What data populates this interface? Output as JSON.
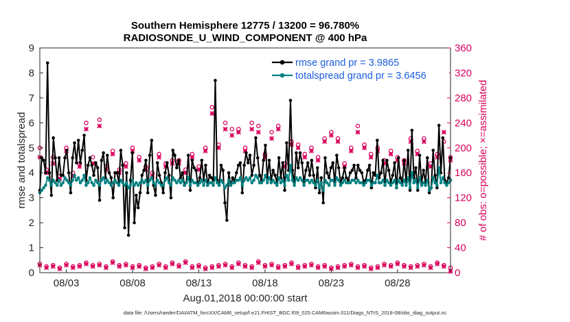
{
  "chart_data": {
    "type": "line",
    "title_line1": "Southern Hemisphere 12775 / 13200 = 96.780%",
    "title_line2": "RADIOSONDE_U_WIND_COMPONENT @ 400 hPa",
    "xlabel": "Aug.01,2018 00:00:00 start",
    "ylabel_left": "rmse and totalspread",
    "ylabel_right": "# of obs: o=possible; ×=assimilated",
    "footer": "data file: /Users/raeder/DAI/ATM_forcXX/CAM6_setup/f.e21.FHIST_BGC.f09_025.CAM6assim.011/Diags_NTrS_2018-08/obs_diag_output.nc",
    "x_range_days": [
      0.5,
      31.5
    ],
    "x_ticks": [
      {
        "day": 2.5,
        "label": "08/03"
      },
      {
        "day": 7.5,
        "label": "08/08"
      },
      {
        "day": 12.5,
        "label": "08/13"
      },
      {
        "day": 17.5,
        "label": "08/18"
      },
      {
        "day": 22.5,
        "label": "08/23"
      },
      {
        "day": 27.5,
        "label": "08/28"
      }
    ],
    "ylim_left": [
      0,
      9
    ],
    "yticks_left": [
      "0",
      "1",
      "2",
      "3",
      "4",
      "5",
      "6",
      "7",
      "8",
      "9"
    ],
    "ylim_right": [
      0,
      360
    ],
    "yticks_right": [
      "0",
      "40",
      "80",
      "120",
      "160",
      "200",
      "240",
      "280",
      "320",
      "360"
    ],
    "colors": {
      "rmse": "#000000",
      "spread": "#008080",
      "obs": "#d9005b",
      "legend_text": "#1a5ddc",
      "axis": "#262626"
    },
    "series": [
      {
        "name": "rmse grand pr = 3.9865",
        "values": [
          3.3,
          4.6,
          4.5,
          4.0,
          8.4,
          4.0,
          3.1,
          5.4,
          4.6,
          3.7,
          4.6,
          3.9,
          3.9,
          4.6,
          4.9,
          4.0,
          3.2,
          4.6,
          5.2,
          4.4,
          5.3,
          4.4,
          4.9,
          5.5,
          3.7,
          4.3,
          4.6,
          4.3,
          3.9,
          4.4,
          4.2,
          2.9,
          4.5,
          4.8,
          3.8,
          4.7,
          4.0,
          3.8,
          3.0,
          4.0,
          4.0,
          3.6,
          4.9,
          4.3,
          1.8,
          4.0,
          1.5,
          3.7,
          4.8,
          2.0,
          3.1,
          2.6,
          3.2,
          3.9,
          4.1,
          4.5,
          3.2,
          4.7,
          5.3,
          3.5,
          3.1,
          4.4,
          3.9,
          3.6,
          3.2,
          4.0,
          4.4,
          3.9,
          3.0,
          4.9,
          4.7,
          4.2,
          4.5,
          3.8,
          4.0,
          3.5,
          3.6,
          4.7,
          3.3,
          4.5,
          4.2,
          4.1,
          3.5,
          3.8,
          4.5,
          3.7,
          4.3,
          3.5,
          3.9,
          3.8,
          3.7,
          7.7,
          3.7,
          3.5,
          4.3,
          4.1,
          2.8,
          2.1,
          4.0,
          3.5,
          3.8,
          3.7,
          4.0,
          4.3,
          4.4,
          3.2,
          4.3,
          4.8,
          4.4,
          4.7,
          3.9,
          4.3,
          5.4,
          4.6,
          3.9,
          3.7,
          4.5,
          5.1,
          3.8,
          4.5,
          3.7,
          4.1,
          3.9,
          3.6,
          4.6,
          3.8,
          4.4,
          3.3,
          5.2,
          4.1,
          6.9,
          4.1,
          3.6,
          4.8,
          4.2,
          4.8,
          4.4,
          3.6,
          4.1,
          4.4,
          3.9,
          4.5,
          3.9,
          3.4,
          4.2,
          3.2,
          3.8,
          2.8,
          4.6,
          4.0,
          3.8,
          4.2,
          4.4,
          3.6,
          4.7,
          4.2,
          3.6,
          3.8,
          4.2,
          3.8,
          3.7,
          4.0,
          4.1,
          4.3,
          3.8,
          4.3,
          4.1,
          4.0,
          3.6,
          3.7,
          4.1,
          4.3,
          3.4,
          4.0,
          3.9,
          5.3,
          3.8,
          4.0,
          4.5,
          3.5,
          4.5,
          4.1,
          3.6,
          3.9,
          4.4,
          3.4,
          4.6,
          3.8,
          3.6,
          4.5,
          3.6,
          4.9,
          3.3,
          5.7,
          3.8,
          4.2,
          3.3,
          4.7,
          3.6,
          4.1,
          3.6,
          4.6,
          3.2,
          3.4,
          4.9,
          3.9,
          3.4,
          5.9,
          4.0,
          5.4,
          3.7,
          3.6,
          3.8,
          4.6
        ]
      },
      {
        "name": "totalspread grand pr = 3.6456",
        "values": [
          3.2,
          3.3,
          3.4,
          3.5,
          3.8,
          3.7,
          3.5,
          3.7,
          3.6,
          3.5,
          3.7,
          3.5,
          3.6,
          3.8,
          3.7,
          3.6,
          3.5,
          3.7,
          3.9,
          3.7,
          3.8,
          3.6,
          3.7,
          3.9,
          3.5,
          3.6,
          3.8,
          3.6,
          3.5,
          3.7,
          3.6,
          3.5,
          3.7,
          3.8,
          3.6,
          3.7,
          3.6,
          3.5,
          3.6,
          3.7,
          3.6,
          3.5,
          3.7,
          3.6,
          3.5,
          3.6,
          3.4,
          3.5,
          3.7,
          3.5,
          3.6,
          3.5,
          3.6,
          3.7,
          3.6,
          3.7,
          3.5,
          3.7,
          3.8,
          3.6,
          3.5,
          3.7,
          3.6,
          3.5,
          3.5,
          3.7,
          3.8,
          3.6,
          3.5,
          3.8,
          3.7,
          3.6,
          3.7,
          3.6,
          3.7,
          3.5,
          3.6,
          3.8,
          3.5,
          3.7,
          3.6,
          3.6,
          3.5,
          3.6,
          3.7,
          3.5,
          3.7,
          3.5,
          3.6,
          3.6,
          3.5,
          3.8,
          3.6,
          3.5,
          3.7,
          3.6,
          3.4,
          3.5,
          3.7,
          3.5,
          3.6,
          3.6,
          3.7,
          3.7,
          3.8,
          3.5,
          3.7,
          3.8,
          3.7,
          3.8,
          3.6,
          3.7,
          3.9,
          3.8,
          3.6,
          3.6,
          3.7,
          3.9,
          3.6,
          3.8,
          3.6,
          3.7,
          3.6,
          3.5,
          3.8,
          3.6,
          3.7,
          3.5,
          3.9,
          3.7,
          4.3,
          3.7,
          3.5,
          3.8,
          3.7,
          3.8,
          3.7,
          3.5,
          3.7,
          3.7,
          3.6,
          3.7,
          3.6,
          3.5,
          3.7,
          3.4,
          3.6,
          3.3,
          3.7,
          3.6,
          3.5,
          3.7,
          3.7,
          3.5,
          3.8,
          3.7,
          3.5,
          3.6,
          3.7,
          3.6,
          3.6,
          3.6,
          3.7,
          3.7,
          3.6,
          3.7,
          3.6,
          3.6,
          3.5,
          3.6,
          3.7,
          3.7,
          3.5,
          3.6,
          3.6,
          3.9,
          3.6,
          3.6,
          3.7,
          3.5,
          3.7,
          3.6,
          3.5,
          3.6,
          3.7,
          3.4,
          3.7,
          3.6,
          3.5,
          3.7,
          3.5,
          3.8,
          3.4,
          4.0,
          3.6,
          3.7,
          3.4,
          3.8,
          3.5,
          3.6,
          3.5,
          3.7,
          3.3,
          3.4,
          3.8,
          3.6,
          3.5,
          4.2,
          3.6,
          3.8,
          3.6,
          3.5,
          3.6,
          3.7
        ]
      }
    ],
    "obs_possible_days": [
      0.5,
      1.0,
      1.5,
      2.0,
      2.5,
      3.0,
      3.5,
      4.0,
      4.5,
      5.0,
      5.5,
      6.0,
      6.5,
      7.0,
      7.5,
      8.0,
      8.5,
      9.0,
      9.5,
      10.0,
      10.5,
      11.0,
      11.5,
      12.0,
      12.5,
      13.0,
      13.5,
      14.0,
      14.5,
      15.0,
      15.5,
      16.0,
      16.5,
      17.0,
      17.5,
      18.0,
      18.5,
      19.0,
      19.5,
      20.0,
      20.5,
      21.0,
      21.5,
      22.0,
      22.5,
      23.0,
      23.5,
      24.0,
      24.5,
      25.0,
      25.5,
      26.0,
      26.5,
      27.0,
      27.5,
      28.0,
      28.5,
      29.0,
      29.5,
      30.0,
      30.5,
      31.0,
      31.5
    ],
    "obs_possible_high": [
      200,
      165,
      185,
      155,
      200,
      160,
      175,
      240,
      185,
      245,
      170,
      195,
      165,
      175,
      200,
      185,
      170,
      160,
      190,
      175,
      180,
      180,
      165,
      190,
      170,
      200,
      265,
      205,
      240,
      230,
      230,
      200,
      240,
      235,
      190,
      225,
      235,
      175,
      210,
      205,
      190,
      200,
      185,
      215,
      225,
      215,
      175,
      200,
      235,
      205,
      190,
      200,
      180,
      195,
      185,
      180,
      215,
      195,
      215,
      175,
      190,
      210,
      185
    ],
    "obs_assim_high": [
      185,
      160,
      175,
      150,
      195,
      155,
      170,
      230,
      175,
      235,
      165,
      190,
      160,
      170,
      195,
      180,
      165,
      155,
      185,
      170,
      175,
      175,
      160,
      185,
      165,
      195,
      255,
      200,
      230,
      220,
      225,
      195,
      230,
      225,
      185,
      215,
      230,
      170,
      205,
      200,
      185,
      195,
      180,
      210,
      220,
      210,
      170,
      195,
      225,
      200,
      185,
      195,
      175,
      190,
      180,
      175,
      210,
      190,
      210,
      170,
      185,
      225,
      180
    ],
    "obs_possible_low": [
      14,
      10,
      12,
      8,
      14,
      10,
      12,
      16,
      12,
      14,
      10,
      18,
      12,
      14,
      10,
      12,
      8,
      10,
      14,
      10,
      16,
      12,
      18,
      10,
      12,
      8,
      10,
      12,
      14,
      10,
      16,
      12,
      10,
      18,
      12,
      14,
      10,
      12,
      16,
      10,
      12,
      14,
      10,
      12,
      8,
      10,
      12,
      14,
      10,
      12,
      8,
      10,
      14,
      12,
      16,
      12,
      10,
      12,
      14,
      10,
      16,
      12,
      8
    ],
    "obs_assim_low": [
      12,
      8,
      10,
      6,
      12,
      8,
      10,
      14,
      10,
      12,
      8,
      16,
      10,
      12,
      8,
      10,
      6,
      8,
      12,
      8,
      14,
      10,
      16,
      8,
      10,
      6,
      8,
      10,
      12,
      8,
      14,
      10,
      8,
      16,
      10,
      12,
      8,
      10,
      14,
      8,
      10,
      12,
      8,
      10,
      6,
      8,
      10,
      12,
      8,
      10,
      6,
      8,
      12,
      10,
      14,
      10,
      8,
      10,
      12,
      8,
      14,
      10,
      2
    ]
  }
}
